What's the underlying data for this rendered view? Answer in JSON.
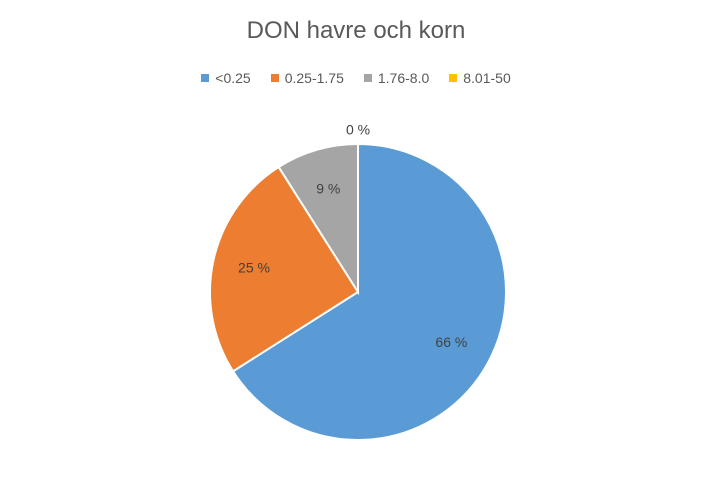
{
  "chart_data": {
    "type": "pie",
    "title": "DON havre och korn",
    "categories": [
      "<0.25",
      "0.25-1.75",
      "1.76-8.0",
      "8.01-50"
    ],
    "values": [
      66,
      25,
      9,
      0
    ],
    "data_labels": [
      "66 %",
      "25 %",
      "9 %",
      "0 %"
    ],
    "colors": [
      "#5B9BD5",
      "#ED7D31",
      "#A5A5A5",
      "#FFC000"
    ],
    "legend_position": "top"
  }
}
